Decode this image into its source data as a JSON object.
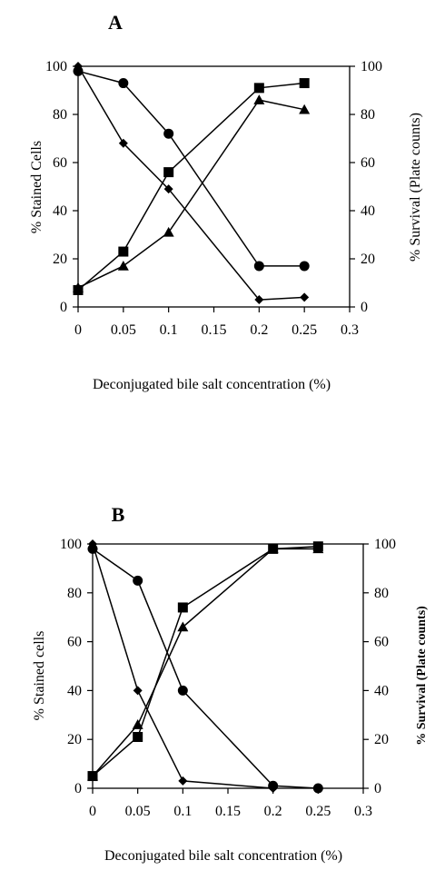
{
  "chart_data": [
    {
      "type": "line",
      "panel_label": "A",
      "xlabel": "Deconjugated bile salt concentration (%)",
      "ylabel_left": "% Stained Cells",
      "ylabel_right": "% Survival (Plate counts)",
      "xlim": [
        0,
        0.3
      ],
      "ylim_left": [
        0,
        100
      ],
      "ylim_right": [
        0,
        100
      ],
      "x_ticks": [
        "0",
        "0.05",
        "0.1",
        "0.15",
        "0.2",
        "0.25",
        "0.3"
      ],
      "y_ticks_left": [
        "0",
        "20",
        "40",
        "60",
        "80",
        "100"
      ],
      "y_ticks_right": [
        "0",
        "20",
        "40",
        "60",
        "80",
        "100"
      ],
      "grid": false,
      "series": [
        {
          "marker": "diamond",
          "x": [
            0,
            0.05,
            0.1,
            0.2,
            0.25
          ],
          "values": [
            100,
            68,
            49,
            3,
            4
          ]
        },
        {
          "marker": "circle",
          "x": [
            0,
            0.05,
            0.1,
            0.2,
            0.25
          ],
          "values": [
            98,
            93,
            72,
            17,
            17
          ]
        },
        {
          "marker": "square",
          "x": [
            0,
            0.05,
            0.1,
            0.2,
            0.25
          ],
          "values": [
            7,
            23,
            56,
            91,
            93
          ]
        },
        {
          "marker": "triangle",
          "x": [
            0,
            0.05,
            0.1,
            0.2,
            0.25
          ],
          "values": [
            8,
            17,
            31,
            86,
            82
          ]
        }
      ]
    },
    {
      "type": "line",
      "panel_label": "B",
      "xlabel": "Deconjugated bile salt concentration (%)",
      "ylabel_left": "% Stained cells",
      "ylabel_right": "% Survival (Plate counts)",
      "xlim": [
        0,
        0.3
      ],
      "ylim_left": [
        0,
        100
      ],
      "ylim_right": [
        0,
        100
      ],
      "x_ticks": [
        "0",
        "0.05",
        "0.1",
        "0.15",
        "0.2",
        "0.25",
        "0.3"
      ],
      "y_ticks_left": [
        "0",
        "20",
        "40",
        "60",
        "80",
        "100"
      ],
      "y_ticks_right": [
        "0",
        "20",
        "40",
        "60",
        "80",
        "100"
      ],
      "grid": false,
      "series": [
        {
          "marker": "diamond",
          "x": [
            0,
            0.05,
            0.1,
            0.2
          ],
          "values": [
            100,
            40,
            3,
            0
          ]
        },
        {
          "marker": "circle",
          "x": [
            0,
            0.05,
            0.1,
            0.2,
            0.25
          ],
          "values": [
            98,
            85,
            40,
            1,
            0
          ]
        },
        {
          "marker": "square",
          "x": [
            0,
            0.05,
            0.1,
            0.2,
            0.25
          ],
          "values": [
            5,
            21,
            74,
            98,
            99
          ]
        },
        {
          "marker": "triangle",
          "x": [
            0,
            0.05,
            0.1,
            0.2,
            0.25
          ],
          "values": [
            5,
            26,
            66,
            98,
            98
          ]
        }
      ]
    }
  ]
}
